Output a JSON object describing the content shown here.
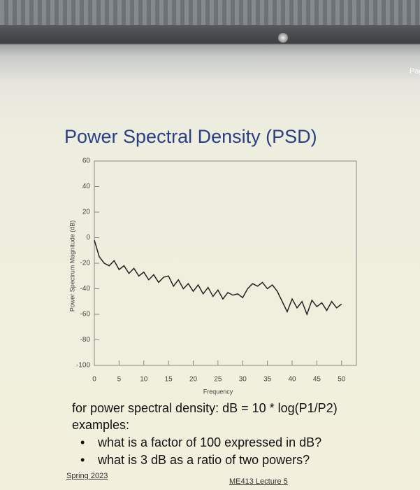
{
  "page_tab": "Pag",
  "chart_data": {
    "type": "line",
    "title": "Power Spectral Density (PSD)",
    "x_label": "Frequency",
    "y_label": "Power Spectrum Magnitude (dB)",
    "x": [
      0,
      1,
      2,
      3,
      4,
      5,
      6,
      7,
      8,
      9,
      10,
      11,
      12,
      13,
      14,
      15,
      16,
      17,
      18,
      19,
      20,
      21,
      22,
      23,
      24,
      25,
      26,
      27,
      28,
      29,
      30,
      31,
      32,
      33,
      34,
      35,
      36,
      37,
      38,
      39,
      40,
      41,
      42,
      43,
      44,
      45,
      46,
      47,
      48,
      49,
      50
    ],
    "series": [
      {
        "name": "PSD",
        "color": "#222222",
        "values": [
          -2,
          -15,
          -20,
          -22,
          -18,
          -25,
          -22,
          -28,
          -24,
          -30,
          -27,
          -33,
          -29,
          -35,
          -31,
          -30,
          -38,
          -33,
          -40,
          -36,
          -42,
          -37,
          -44,
          -39,
          -46,
          -41,
          -48,
          -43,
          -45,
          -44,
          -47,
          -40,
          -36,
          -38,
          -35,
          -40,
          -37,
          -42,
          -50,
          -58,
          -48,
          -55,
          -50,
          -60,
          -49,
          -54,
          -51,
          -57,
          -50,
          -55,
          -52
        ]
      }
    ],
    "xlim": [
      0,
      53
    ],
    "ylim": [
      -100,
      60
    ],
    "xticks": [
      0,
      5,
      10,
      15,
      20,
      25,
      30,
      35,
      40,
      45,
      50
    ],
    "yticks": [
      60,
      40,
      20,
      0,
      -20,
      -40,
      -60,
      -80,
      -100
    ]
  },
  "body": {
    "line1": "for power spectral density: dB = 10 * log(P1/P2)",
    "line2": "examples:",
    "bullets": [
      "what is a factor of 100 expressed in dB?",
      "what is 3 dB as a ratio of two powers?"
    ]
  },
  "footer": {
    "left": "Spring 2023",
    "center": "ME413 Lecture 5"
  }
}
